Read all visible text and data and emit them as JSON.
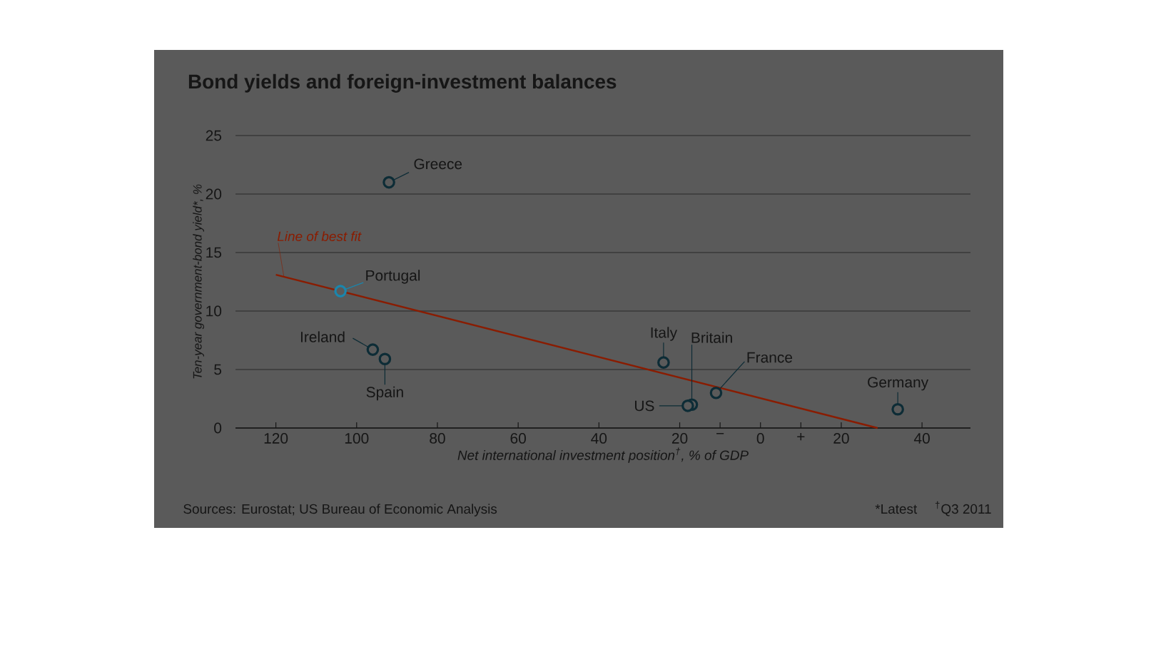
{
  "chart_data": {
    "type": "scatter",
    "title": "Bond yields and foreign-investment balances",
    "xlabel": "Net international investment position$^{†}$, % of GDP",
    "ylabel": "Ten-year government-bond yield*, %",
    "xlim": [
      -130,
      52
    ],
    "ylim": [
      0,
      25
    ],
    "xticks": [
      {
        "value": -120,
        "label": "120"
      },
      {
        "value": -100,
        "label": "100"
      },
      {
        "value": -80,
        "label": "80"
      },
      {
        "value": -60,
        "label": "60"
      },
      {
        "value": -40,
        "label": "40"
      },
      {
        "value": -20,
        "label": "20"
      },
      {
        "value": -10,
        "label": "−"
      },
      0,
      {
        "value": 10,
        "label": "+"
      },
      20,
      40
    ],
    "yticks": [
      0,
      5,
      10,
      15,
      20,
      25
    ],
    "grid": "y",
    "series": [
      {
        "marker": "circle",
        "colors": [
          "#0d2c36",
          "#1a86ad",
          "#0d2c36",
          "#0d2c36",
          "#0d2c36",
          "#0d2c36",
          "#0d2c36",
          "#0d2c36",
          "#0d2c36"
        ],
        "x": [
          -92,
          -104,
          -96,
          -93,
          -24,
          -17,
          -18,
          -11,
          34
        ],
        "values": [
          21.0,
          11.7,
          6.7,
          5.9,
          5.6,
          2.0,
          1.9,
          3.0,
          1.6
        ]
      },
      {
        "type": "line",
        "color": "#8a1c00",
        "x": [
          -120,
          29
        ],
        "values": [
          13.1,
          0
        ]
      }
    ],
    "annotations": [
      {
        "text": "Greece",
        "x": -92,
        "y": 21.0
      },
      {
        "text": "Portugal",
        "x": -104,
        "y": 11.7
      },
      {
        "text": "Ireland",
        "x": -96,
        "y": 6.7
      },
      {
        "text": "Spain",
        "x": -93,
        "y": 5.9
      },
      {
        "text": "Italy",
        "x": -24,
        "y": 5.6
      },
      {
        "text": "Britain",
        "x": -17,
        "y": 2.0
      },
      {
        "text": "US",
        "x": -18,
        "y": 1.9
      },
      {
        "text": "France",
        "x": -11,
        "y": 3.0
      },
      {
        "text": "Germany",
        "x": 34,
        "y": 1.6
      },
      {
        "text": "Line of best fit",
        "x": -118,
        "y": 12.9
      },
      "Sources: Eurostat; US Bureau of Economic Analysis",
      "*Latest",
      "$^{†}$Q3 2011"
    ]
  }
}
